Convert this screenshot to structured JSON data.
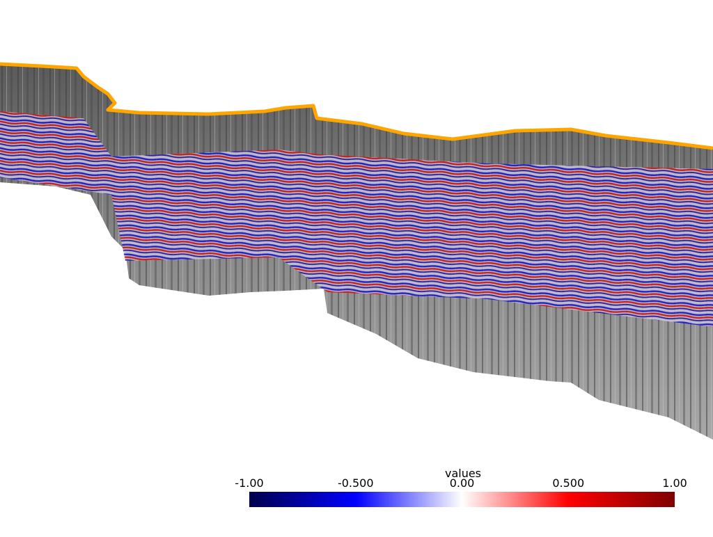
{
  "colorbar": {
    "title": "values",
    "lim": [
      -1,
      1
    ],
    "ticks": [
      {
        "value": -1,
        "label": "-1.00"
      },
      {
        "value": -0.5,
        "label": "-0.500"
      },
      {
        "value": 0,
        "label": "0.00"
      },
      {
        "value": 0.5,
        "label": "0.500"
      },
      {
        "value": 1,
        "label": "1.00"
      }
    ],
    "colors": [
      "#00004c",
      "#0000ff",
      "#ffffff",
      "#ff0000",
      "#7f0000"
    ]
  }
}
